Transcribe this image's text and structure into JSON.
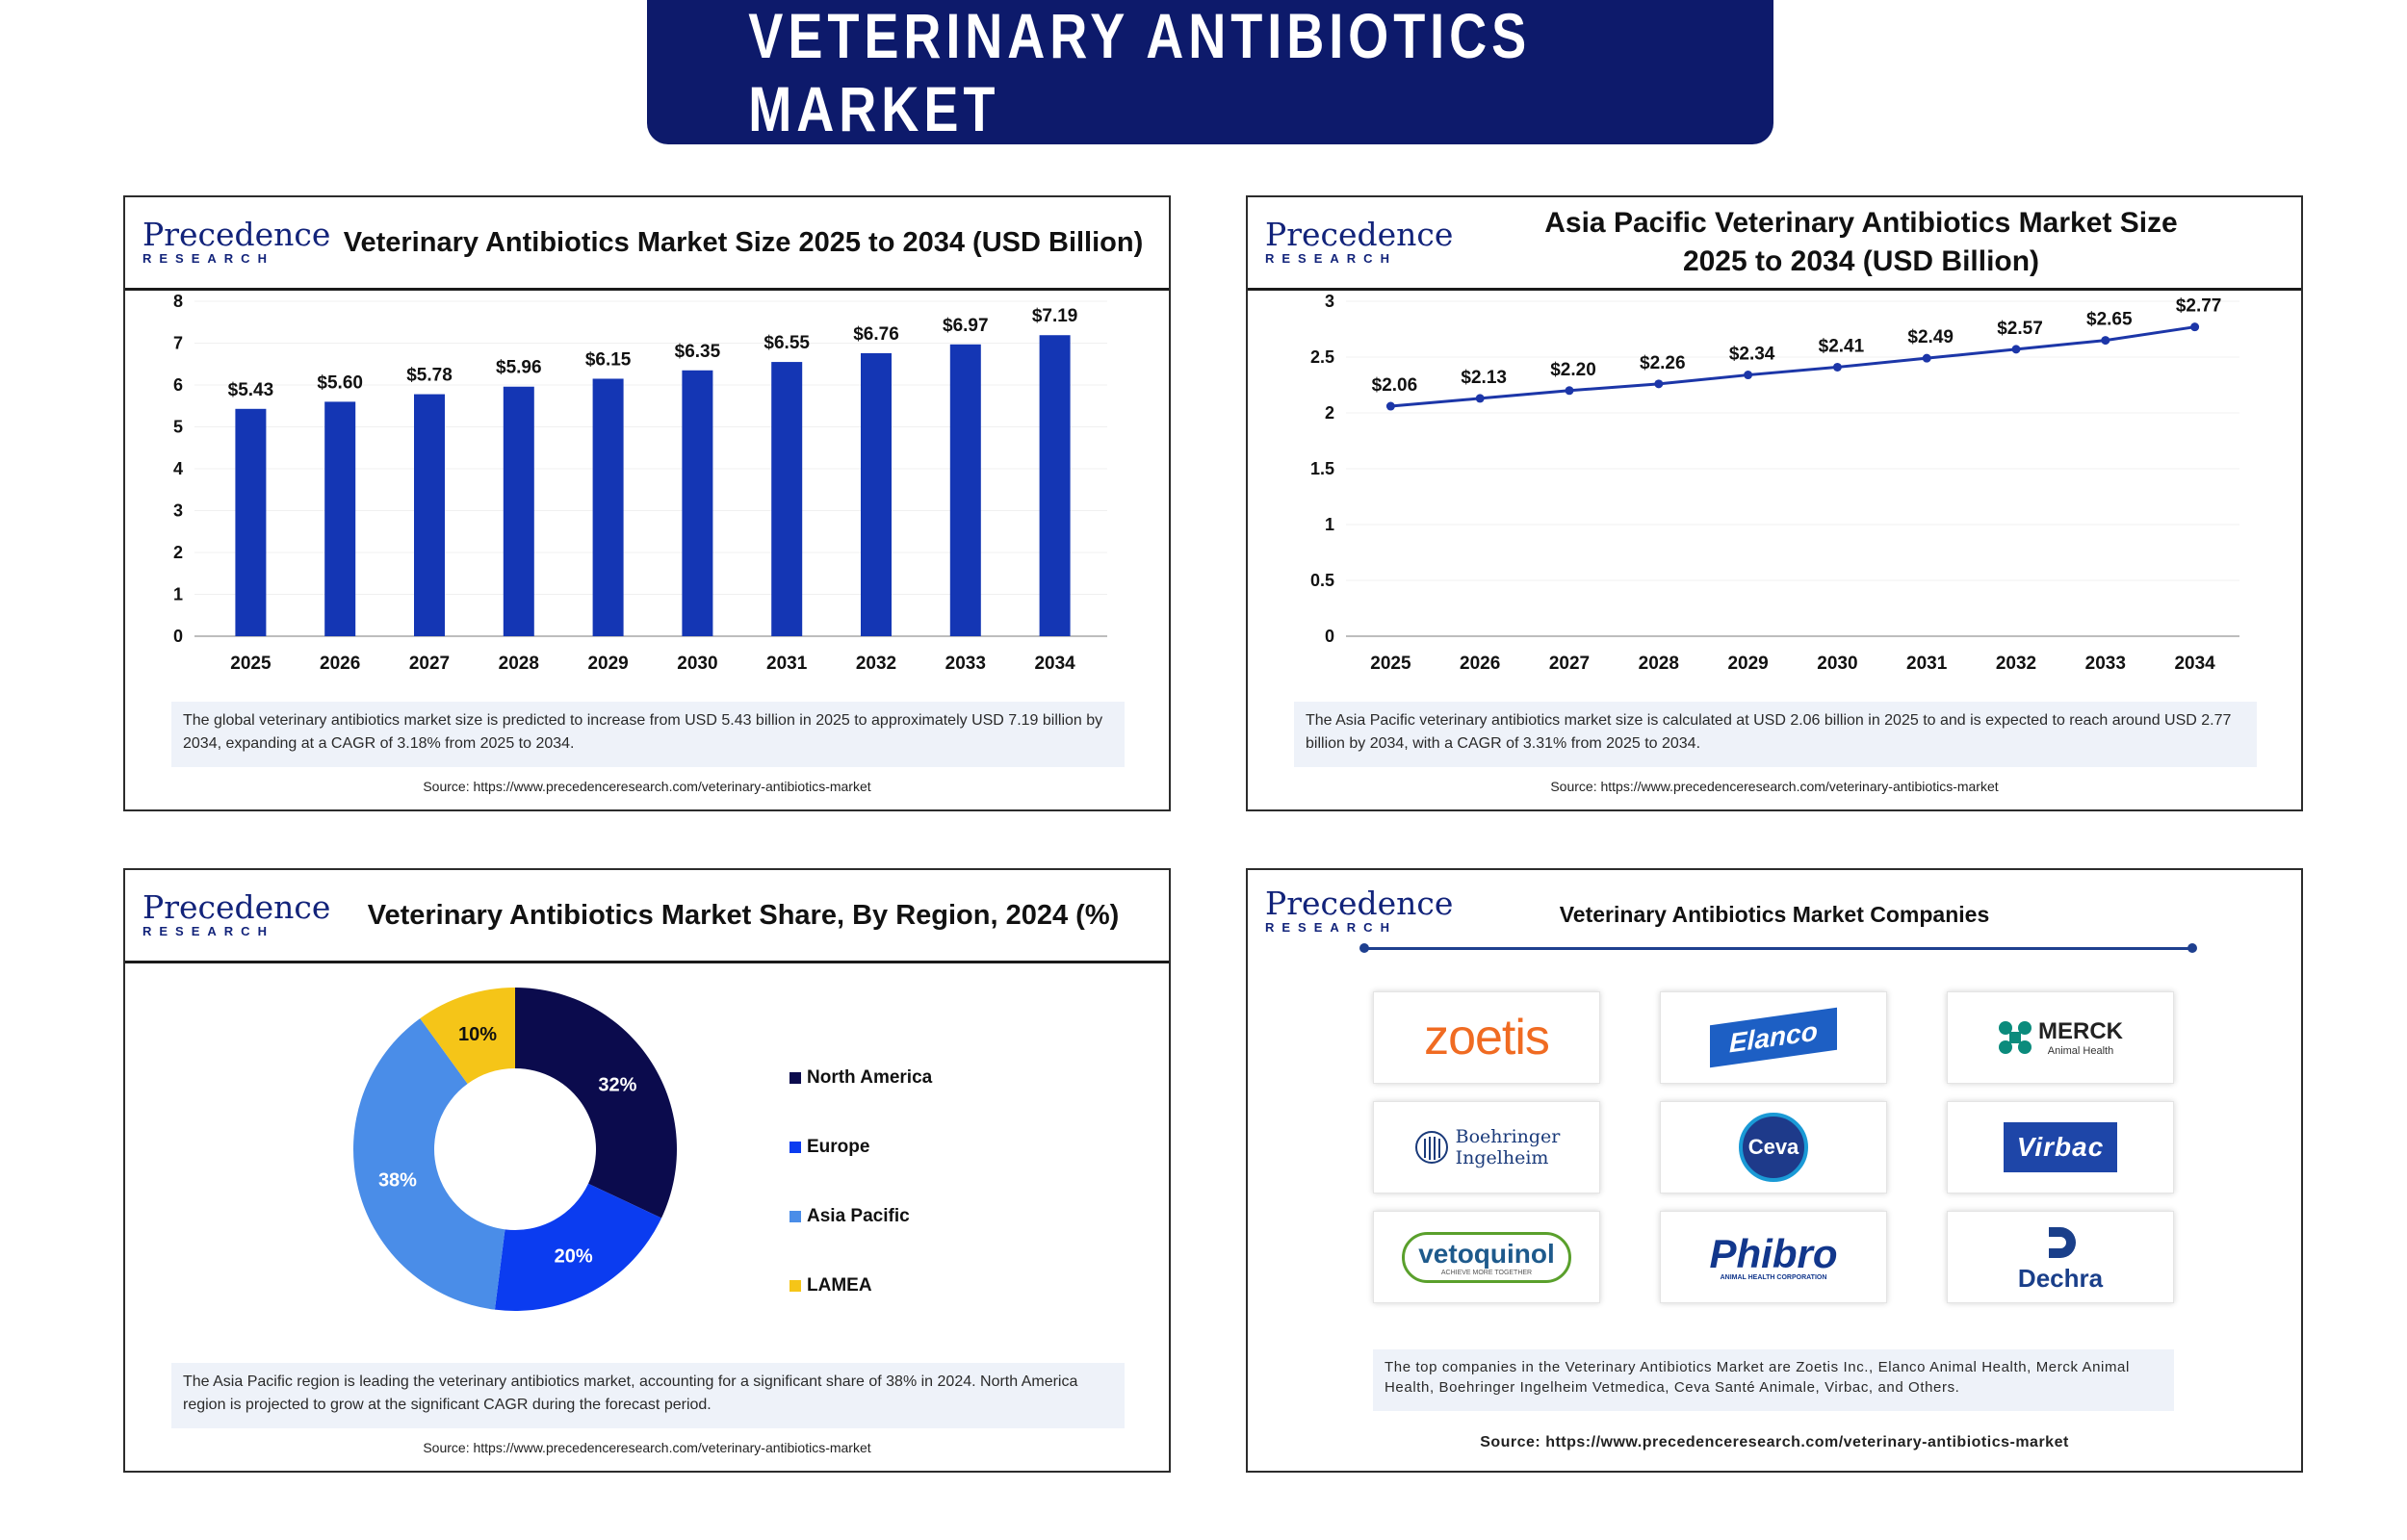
{
  "banner_title": "VETERINARY ANTIBIOTICS MARKET",
  "logo": {
    "top": "Precedence",
    "bottom": "RESEARCH"
  },
  "colors": {
    "navy": "#0d1a6b",
    "bar": "#1436b4",
    "line": "#1c36a8",
    "north_america": "#0b0b4d",
    "europe": "#0b3cf0",
    "asia_pacific": "#4a8de8",
    "lamea": "#f5c518"
  },
  "chart_data": [
    {
      "type": "bar",
      "title": "Veterinary Antibiotics Market Size 2025 to 2034 (USD Billion)",
      "categories": [
        "2025",
        "2026",
        "2027",
        "2028",
        "2029",
        "2030",
        "2031",
        "2032",
        "2033",
        "2034"
      ],
      "values": [
        5.43,
        5.6,
        5.78,
        5.96,
        6.15,
        6.35,
        6.55,
        6.76,
        6.97,
        7.19
      ],
      "data_labels": [
        "$5.43",
        "$5.60",
        "$5.78",
        "$5.96",
        "$6.15",
        "$6.35",
        "$6.55",
        "$6.76",
        "$6.97",
        "$7.19"
      ],
      "yticks": [
        "0",
        "1",
        "2",
        "3",
        "4",
        "5",
        "6",
        "7",
        "8"
      ],
      "ylim": [
        0,
        8
      ],
      "grid": true,
      "note": "The global veterinary antibiotics market size is predicted to increase from USD 5.43 billion in 2025 to approximately USD 7.19 billion by 2034, expanding at a CAGR of 3.18% from 2025 to 2034.",
      "source": "Source: https://www.precedenceresearch.com/veterinary-antibiotics-market"
    },
    {
      "type": "line",
      "title": "Asia Pacific Veterinary Antibiotics Market Size 2025 to 2034 (USD Billion)",
      "categories": [
        "2025",
        "2026",
        "2027",
        "2028",
        "2029",
        "2030",
        "2031",
        "2032",
        "2033",
        "2034"
      ],
      "values": [
        2.06,
        2.13,
        2.2,
        2.26,
        2.34,
        2.41,
        2.49,
        2.57,
        2.65,
        2.77
      ],
      "data_labels": [
        "$2.06",
        "$2.13",
        "$2.20",
        "$2.26",
        "$2.34",
        "$2.41",
        "$2.49",
        "$2.57",
        "$2.65",
        "$2.77"
      ],
      "yticks": [
        "0",
        "0.5",
        "1",
        "1.5",
        "2",
        "2.5",
        "3"
      ],
      "ylim": [
        0,
        3
      ],
      "grid": true,
      "note": "The Asia Pacific veterinary antibiotics market size is calculated at USD 2.06 billion in 2025 to and is expected to reach around USD 2.77 billion by 2034, with a CAGR of 3.31% from 2025 to 2034.",
      "source": "Source: https://www.precedenceresearch.com/veterinary-antibiotics-market"
    },
    {
      "type": "pie",
      "title": "Veterinary Antibiotics Market Share, By Region, 2024 (%)",
      "labels": [
        "North America",
        "Europe",
        "Asia Pacific",
        "LAMEA"
      ],
      "values": [
        32,
        20,
        38,
        10
      ],
      "data_labels": [
        "32%",
        "20%",
        "38%",
        "10%"
      ],
      "legend": "right",
      "note": "The Asia Pacific region is leading the veterinary antibiotics market, accounting for a significant share of 38% in 2024. North America region is projected to grow at the significant CAGR during the forecast period.",
      "source": "Source: https://www.precedenceresearch.com/veterinary-antibiotics-market"
    }
  ],
  "companies": {
    "title": "Veterinary Antibiotics Market Companies",
    "logos": [
      {
        "name": "zoetis"
      },
      {
        "name": "Elanco"
      },
      {
        "name": "MERCK",
        "sub": "Animal Health"
      },
      {
        "name": "Boehringer",
        "name2": "Ingelheim"
      },
      {
        "name": "Ceva"
      },
      {
        "name": "Virbac"
      },
      {
        "name": "vetoquinol",
        "sub": "ACHIEVE MORE TOGETHER"
      },
      {
        "name": "Phibro",
        "sub": "ANIMAL HEALTH CORPORATION"
      },
      {
        "name": "Dechra"
      }
    ],
    "note": "The top companies in the Veterinary Antibiotics Market are Zoetis Inc., Elanco Animal Health, Merck Animal Health, Boehringer Ingelheim Vetmedica, Ceva Santé Animale, Virbac, and Others.",
    "source": "Source: https://www.precedenceresearch.com/veterinary-antibiotics-market"
  }
}
